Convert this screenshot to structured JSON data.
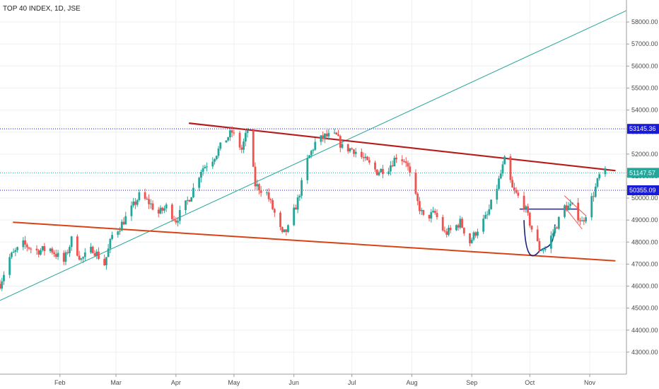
{
  "chart_data": {
    "type": "candlestick",
    "title": "TOP 40 INDEX, 1D, JSE",
    "ylim": [
      42000,
      59000
    ],
    "y_ticks": [
      43000,
      44000,
      45000,
      46000,
      47000,
      48000,
      49000,
      50000,
      51000,
      52000,
      53000,
      54000,
      55000,
      56000,
      57000,
      58000
    ],
    "y_tick_labels": [
      "43000.00",
      "44000.00",
      "45000.00",
      "46000.00",
      "47000.00",
      "48000.00",
      "49000.00",
      "50000.00",
      "51000.00",
      "52000.00",
      "53000.00",
      "54000.00",
      "55000.00",
      "56000.00",
      "57000.00",
      "58000.00"
    ],
    "x_labels": [
      "Feb",
      "Mar",
      "Apr",
      "May",
      "Jun",
      "Jul",
      "Aug",
      "Sep",
      "Oct",
      "Nov"
    ],
    "x_label_dates": [
      "2020-02-01",
      "2020-03-01",
      "2020-04-01",
      "2020-05-01",
      "2020-06-01",
      "2020-07-01",
      "2020-08-01",
      "2020-09-01",
      "2020-10-01",
      "2020-11-01"
    ],
    "x_range": [
      "2020-01-01",
      "2020-11-20"
    ],
    "colors": {
      "up": "#26a69a",
      "down": "#ef5350",
      "resistance": "#b71c1c",
      "support": "#d84315",
      "trendline": "#26a69a",
      "level_line": "#1a1ad9",
      "last_price": "#26a69a",
      "cup_handle": "#1a237e"
    },
    "price_path": [
      [
        "2020-01-01",
        46100
      ],
      [
        "2020-01-06",
        47300
      ],
      [
        "2020-01-13",
        47900
      ],
      [
        "2020-01-20",
        47600
      ],
      [
        "2020-01-27",
        47700
      ],
      [
        "2020-02-03",
        47100
      ],
      [
        "2020-02-07",
        48100
      ],
      [
        "2020-02-12",
        47200
      ],
      [
        "2020-02-18",
        47700
      ],
      [
        "2020-02-24",
        47000
      ],
      [
        "2020-02-28",
        48300
      ],
      [
        "2020-03-03",
        48700
      ],
      [
        "2020-03-09",
        49500
      ],
      [
        "2020-03-13",
        50100
      ],
      [
        "2020-03-18",
        49800
      ],
      [
        "2020-03-23",
        49300
      ],
      [
        "2020-03-27",
        49600
      ],
      [
        "2020-04-01",
        49000
      ],
      [
        "2020-04-06",
        49700
      ],
      [
        "2020-04-09",
        50200
      ],
      [
        "2020-04-14",
        51300
      ],
      [
        "2020-04-20",
        51800
      ],
      [
        "2020-04-27",
        52700
      ],
      [
        "2020-04-30",
        53000
      ],
      [
        "2020-05-05",
        52200
      ],
      [
        "2020-05-08",
        53100
      ],
      [
        "2020-05-12",
        50600
      ],
      [
        "2020-05-18",
        50200
      ],
      [
        "2020-05-22",
        49300
      ],
      [
        "2020-05-26",
        48300
      ],
      [
        "2020-05-29",
        48600
      ],
      [
        "2020-06-03",
        49900
      ],
      [
        "2020-06-08",
        51700
      ],
      [
        "2020-06-12",
        52500
      ],
      [
        "2020-06-17",
        52800
      ],
      [
        "2020-06-23",
        52800
      ],
      [
        "2020-06-26",
        52300
      ],
      [
        "2020-07-02",
        52200
      ],
      [
        "2020-07-09",
        51600
      ],
      [
        "2020-07-14",
        51200
      ],
      [
        "2020-07-20",
        51400
      ],
      [
        "2020-07-24",
        51900
      ],
      [
        "2020-07-29",
        51700
      ],
      [
        "2020-08-03",
        50000
      ],
      [
        "2020-08-07",
        49100
      ],
      [
        "2020-08-13",
        49300
      ],
      [
        "2020-08-18",
        48400
      ],
      [
        "2020-08-21",
        48500
      ],
      [
        "2020-08-26",
        48900
      ],
      [
        "2020-08-31",
        48000
      ],
      [
        "2020-09-04",
        48600
      ],
      [
        "2020-09-09",
        49200
      ],
      [
        "2020-09-14",
        50500
      ],
      [
        "2020-09-18",
        51700
      ],
      [
        "2020-09-22",
        50400
      ],
      [
        "2020-09-28",
        49700
      ],
      [
        "2020-10-02",
        48600
      ],
      [
        "2020-10-06",
        47700
      ],
      [
        "2020-10-09",
        47700
      ],
      [
        "2020-10-14",
        48600
      ],
      [
        "2020-10-19",
        49600
      ],
      [
        "2020-10-23",
        49600
      ],
      [
        "2020-10-28",
        48900
      ],
      [
        "2020-10-30",
        49300
      ],
      [
        "2020-11-03",
        50200
      ],
      [
        "2020-11-06",
        51000
      ],
      [
        "2020-11-09",
        51150
      ]
    ],
    "annotations": {
      "horizontal_levels": [
        {
          "label": "53145.36",
          "value": 53145.36,
          "color": "#1a1ad9"
        },
        {
          "label": "51147.57",
          "value": 51147.57,
          "color": "#26a69a"
        },
        {
          "label": "50355.09",
          "value": 50355.09,
          "color": "#1a1ad9"
        }
      ],
      "resistance_line": [
        [
          "2020-04-08",
          53400
        ],
        [
          "2020-11-14",
          51250
        ]
      ],
      "support_line": [
        [
          "2020-01-08",
          48900
        ],
        [
          "2020-11-14",
          47150
        ]
      ],
      "uptrend_line": [
        [
          "2020-01-01",
          45350
        ],
        [
          "2020-05-19",
          51000
        ]
      ],
      "cup_arc": {
        "from": [
          "2020-09-28",
          49000
        ],
        "bottom": [
          "2020-10-06",
          47600
        ],
        "to": [
          "2020-10-14",
          48800
        ]
      },
      "handle_line": [
        [
          "2020-09-26",
          49500
        ],
        [
          "2020-10-26",
          49500
        ]
      ],
      "flag_channel": [
        [
          [
            "2020-10-19",
            50100
          ],
          [
            "2020-10-30",
            49200
          ]
        ],
        [
          [
            "2020-10-19",
            49600
          ],
          [
            "2020-10-28",
            48600
          ]
        ]
      ]
    }
  }
}
